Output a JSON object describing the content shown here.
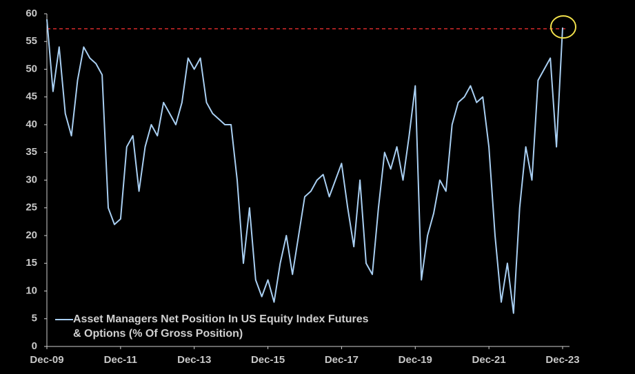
{
  "chart_data": {
    "type": "line",
    "categories": [
      "Dec-09",
      null,
      null,
      null,
      null,
      null,
      null,
      null,
      null,
      null,
      null,
      null,
      "Dec-11",
      null,
      null,
      null,
      null,
      null,
      null,
      null,
      null,
      null,
      null,
      null,
      "Dec-13",
      null,
      null,
      null,
      null,
      null,
      null,
      null,
      null,
      null,
      null,
      null,
      "Dec-15",
      null,
      null,
      null,
      null,
      null,
      null,
      null,
      null,
      null,
      null,
      null,
      "Dec-17",
      null,
      null,
      null,
      null,
      null,
      null,
      null,
      null,
      null,
      null,
      null,
      "Dec-19",
      null,
      null,
      null,
      null,
      null,
      null,
      null,
      null,
      null,
      null,
      null,
      "Dec-21",
      null,
      null,
      null,
      null,
      null,
      null,
      null,
      null,
      null,
      null,
      null,
      "Dec-23"
    ],
    "series": [
      {
        "name": "Asset Managers Net Position In US Equity Index Futures & Options (% Of Gross Position)",
        "color": "#a9cff2",
        "values": [
          59,
          46,
          54,
          42,
          38,
          48,
          54,
          52,
          51,
          49,
          25,
          22,
          23,
          36,
          38,
          28,
          36,
          40,
          38,
          44,
          42,
          40,
          44,
          52,
          50,
          52,
          44,
          42,
          41,
          40,
          40,
          30,
          15,
          25,
          12,
          9,
          12,
          8,
          15,
          20,
          13,
          20,
          27,
          28,
          30,
          31,
          27,
          30,
          33,
          25,
          18,
          30,
          15,
          13,
          25,
          35,
          32,
          36,
          30,
          38,
          47,
          12,
          20,
          24,
          30,
          28,
          40,
          44,
          45,
          47,
          44,
          45,
          36,
          20,
          8,
          15,
          6,
          25,
          36,
          30,
          48,
          50,
          52,
          36,
          57.5
        ]
      }
    ],
    "reference_line": {
      "value": 57.3,
      "color": "#d42a2a"
    },
    "ylim": [
      0,
      60
    ],
    "yticks": [
      0,
      5,
      10,
      15,
      20,
      25,
      30,
      35,
      40,
      45,
      50,
      55,
      60
    ]
  }
}
